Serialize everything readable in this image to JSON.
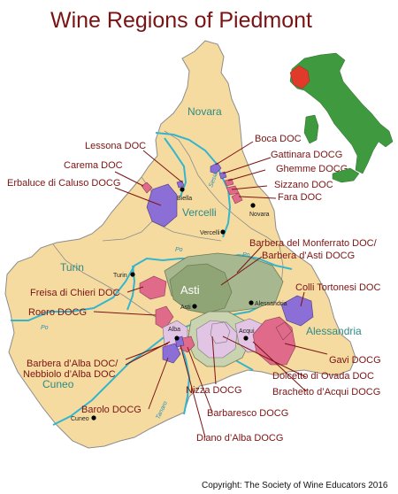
{
  "title": "Wine Regions of Piedmont",
  "copyright": "Copyright:  The Society of Wine Educators 2016",
  "colors": {
    "region_fill": "#f6dba0",
    "region_border": "#8c8c8c",
    "river": "#33b5cf",
    "label": "#7a1414",
    "province_label": "#2e8a85",
    "monferrato": "#a7b78f",
    "asti_area": "#8fa576",
    "langhe": "#c9d3b0",
    "purple": "#8b6fd6",
    "pink": "#e06a8a",
    "lilac": "#e2c4e4",
    "italy_green": "#3f9a3f",
    "piedmont_highlight": "#e03a2a"
  },
  "provinces": [
    "Novara",
    "Vercelli",
    "Turin",
    "Asti",
    "Alessandria",
    "Cuneo"
  ],
  "cities": [
    "Biella",
    "Novara",
    "Vercelli",
    "Turin",
    "Asti",
    "Alessandria",
    "Alba",
    "Acqui",
    "Cuneo"
  ],
  "rivers": [
    "Sesia",
    "Po",
    "Po",
    "Po",
    "Tanaro"
  ],
  "labels": {
    "lessona": "Lessona DOC",
    "carema": "Carema DOC",
    "erbaluce": "Erbaluce di Caluso DOCG",
    "boca": "Boca DOC",
    "gattinara": "Gattinara DOCG",
    "ghemme": "Ghemme DOCG",
    "sizzano": "Sizzano DOC",
    "fara": "Fara DOC",
    "barbera_monferrato": "Barbera del Monferrato DOC/",
    "barbera_asti": "Barbera d’Asti DOCG",
    "freisa": "Freisa di Chieri DOC",
    "colli_tortonesi": "Colli Tortonesi DOC",
    "roero": "Roero DOCG",
    "gavi": "Gavi DOCG",
    "barbera_alba": "Barbera d’Alba DOC/",
    "nebbiolo_alba": "Nebbiolo d’Alba DOC",
    "dolcetto_ovada": "Dolcetto di Ovada DOC",
    "brachetto": "Brachetto d’Acqui DOCG",
    "barolo": "Barolo DOCG",
    "nizza": "Nizza DOCG",
    "barbaresco": "Barbaresco DOCG",
    "diano": "Diano d’Alba DOCG"
  }
}
